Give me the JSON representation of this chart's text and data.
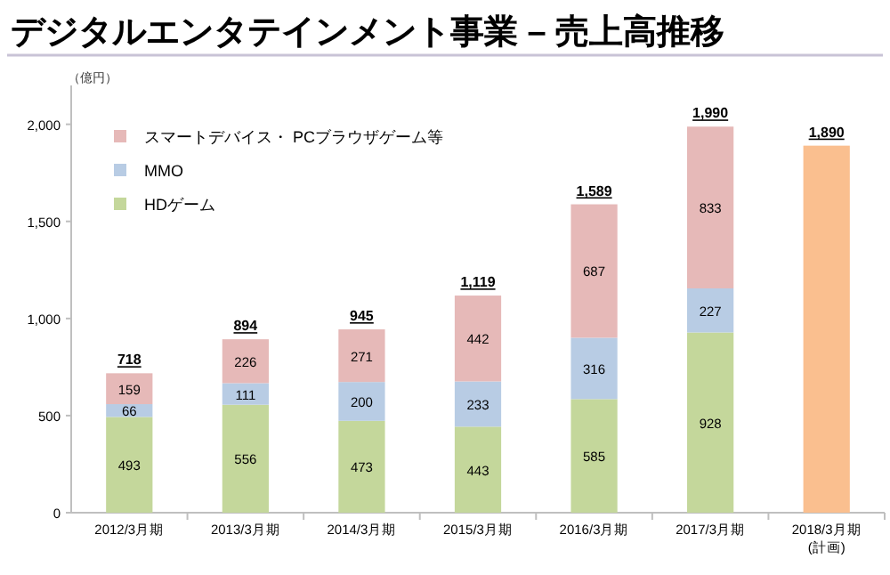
{
  "chart_data": {
    "type": "bar",
    "title": "デジタルエンタテインメント事業 – 売上高推移",
    "ylabel": "（億円）",
    "categories": [
      "2012/3月期",
      "2013/3月期",
      "2014/3月期",
      "2015/3月期",
      "2016/3月期",
      "2017/3月期",
      "2018/3月期\n(計画)"
    ],
    "stacked": true,
    "ylim": [
      0,
      2200
    ],
    "yticks": [
      0,
      500,
      {
        "value": 1000,
        "label": "1,000"
      },
      {
        "value": 1500,
        "label": "1,500"
      },
      {
        "value": 2000,
        "label": "2,000"
      }
    ],
    "grid": false,
    "legend": "top left",
    "series": [
      {
        "name": "HDゲーム",
        "color": "#c4d79b",
        "values": [
          493,
          556,
          473,
          443,
          585,
          928,
          null
        ],
        "value_labels": [
          "493",
          "556",
          "473",
          "443",
          "585",
          "928",
          null
        ]
      },
      {
        "name": "MMO",
        "color": "#b8cce4",
        "values": [
          66,
          111,
          200,
          233,
          316,
          227,
          null
        ],
        "value_labels": [
          "66",
          "111",
          "200",
          "233",
          "316",
          "227",
          null
        ]
      },
      {
        "name": "スマートデバイス・ PCブラウザゲーム等",
        "color": "#e6b9b8",
        "values": [
          159,
          226,
          271,
          442,
          687,
          833,
          null
        ],
        "value_labels": [
          "159",
          "226",
          "271",
          "442",
          "687",
          "833",
          null
        ]
      },
      {
        "color": "#fabf8f",
        "values": [
          null,
          null,
          null,
          null,
          null,
          null,
          1890
        ]
      }
    ],
    "totals": [
      "718",
      "894",
      "945",
      "1,119",
      "1,589",
      "1,990",
      "1,890"
    ]
  }
}
